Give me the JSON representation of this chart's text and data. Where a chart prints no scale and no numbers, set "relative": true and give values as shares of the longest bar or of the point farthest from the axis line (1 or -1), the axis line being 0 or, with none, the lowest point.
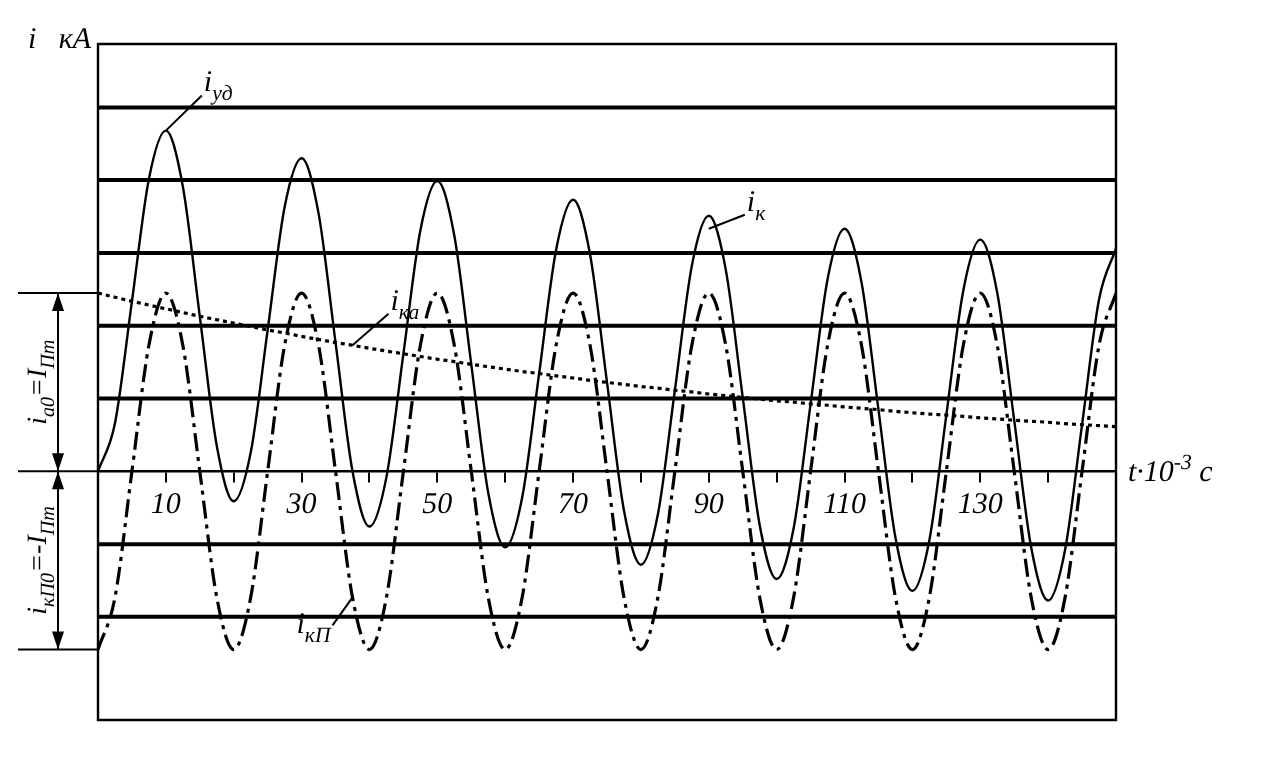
{
  "chart_data": {
    "type": "line",
    "relative": true,
    "ylabel": "i   кА",
    "xlabel": "t·10$^{-3}$ c",
    "xlim": [
      0,
      150
    ],
    "xticks": [
      {
        "value": 10,
        "label": "10"
      },
      {
        "value": 20,
        "label": null
      },
      {
        "value": 30,
        "label": "30"
      },
      {
        "value": 40,
        "label": null
      },
      {
        "value": 50,
        "label": "50"
      },
      {
        "value": 60,
        "label": null
      },
      {
        "value": 70,
        "label": "70"
      },
      {
        "value": 80,
        "label": null
      },
      {
        "value": 90,
        "label": "90"
      },
      {
        "value": 100,
        "label": null
      },
      {
        "value": 110,
        "label": "110"
      },
      {
        "value": 120,
        "label": null
      },
      {
        "value": 130,
        "label": "130"
      },
      {
        "value": 140,
        "label": null
      }
    ],
    "x": [
      0,
      2.5,
      5,
      7.5,
      10,
      12.5,
      15,
      17.5,
      20,
      22.5,
      25,
      27.5,
      30,
      32.5,
      35,
      37.5,
      40,
      42.5,
      45,
      47.5,
      50,
      52.5,
      55,
      57.5,
      60,
      62.5,
      65,
      67.5,
      70,
      72.5,
      75,
      77.5,
      80,
      82.5,
      85,
      87.5,
      90,
      92.5,
      95,
      97.5,
      100,
      102.5,
      105,
      107.5,
      110,
      112.5,
      115,
      117.5,
      120,
      122.5,
      125,
      127.5,
      130,
      132.5,
      135,
      137.5,
      140,
      142.5,
      145,
      147.5,
      150
    ],
    "series": [
      {
        "color": "#000000",
        "line_style": "solid",
        "values": [
          0,
          0.141,
          0.499,
          0.858,
          1.0,
          0.836,
          0.455,
          0.075,
          -0.088,
          0.055,
          0.415,
          0.776,
          0.919,
          0.757,
          0.378,
          0.0,
          -0.162,
          -0.017,
          0.345,
          0.707,
          0.852,
          0.692,
          0.314,
          -0.063,
          -0.223,
          -0.077,
          0.287,
          0.65,
          0.797,
          0.637,
          0.261,
          -0.115,
          -0.274,
          -0.126,
          0.238,
          0.603,
          0.75,
          0.592,
          0.217,
          -0.158,
          -0.316,
          -0.167,
          0.198,
          0.564,
          0.712,
          0.555,
          0.181,
          -0.194,
          -0.351,
          -0.202,
          0.165,
          0.531,
          0.68,
          0.524,
          0.15,
          -0.223,
          -0.379,
          -0.23,
          0.137,
          0.504,
          0.654
        ]
      },
      {
        "color": "#000000",
        "line_style": "dotted",
        "values": [
          0.523,
          0.511,
          0.499,
          0.488,
          0.477,
          0.466,
          0.455,
          0.445,
          0.435,
          0.425,
          0.415,
          0.406,
          0.396,
          0.387,
          0.378,
          0.37,
          0.361,
          0.353,
          0.345,
          0.337,
          0.329,
          0.322,
          0.314,
          0.307,
          0.3,
          0.293,
          0.287,
          0.28,
          0.274,
          0.267,
          0.261,
          0.255,
          0.249,
          0.244,
          0.238,
          0.233,
          0.227,
          0.222,
          0.217,
          0.212,
          0.207,
          0.203,
          0.198,
          0.194,
          0.189,
          0.185,
          0.181,
          0.176,
          0.172,
          0.168,
          0.165,
          0.161,
          0.157,
          0.154,
          0.15,
          0.147,
          0.144,
          0.14,
          0.137,
          0.134,
          0.131
        ]
      },
      {
        "color": "#000000",
        "line_style": "dashed",
        "values": [
          -0.523,
          -0.37,
          0,
          0.37,
          0.523,
          0.37,
          0,
          -0.37,
          -0.523,
          -0.37,
          0,
          0.37,
          0.523,
          0.37,
          0,
          -0.37,
          -0.523,
          -0.37,
          0,
          0.37,
          0.523,
          0.37,
          0,
          -0.37,
          -0.523,
          -0.37,
          0,
          0.37,
          0.523,
          0.37,
          0,
          -0.37,
          -0.523,
          -0.37,
          0,
          0.37,
          0.523,
          0.37,
          0,
          -0.37,
          -0.523,
          -0.37,
          0,
          0.37,
          0.523,
          0.37,
          0,
          -0.37,
          -0.523,
          -0.37,
          0,
          0.37,
          0.523,
          0.37,
          0,
          -0.37,
          -0.523,
          -0.37,
          0,
          0.37,
          0.523
        ]
      }
    ],
    "ref_lines": [
      {
        "axis": "y",
        "value": 1.068,
        "color": "#000000"
      },
      {
        "axis": "y",
        "value": 0.855,
        "color": "#000000"
      },
      {
        "axis": "y",
        "value": 0.641,
        "color": "#000000"
      },
      {
        "axis": "y",
        "value": 0.427,
        "color": "#000000"
      },
      {
        "axis": "y",
        "value": 0.214,
        "color": "#000000"
      },
      {
        "axis": "y",
        "value": -0.214,
        "color": "#000000"
      },
      {
        "axis": "y",
        "value": -0.427,
        "color": "#000000"
      }
    ],
    "annotations": [
      {
        "text": "i$_{уд}$",
        "x": 10,
        "y": 1.0
      },
      {
        "text": "i$_{к}$",
        "x": 90,
        "y": 0.712
      },
      {
        "text": "i$_{ка}$",
        "x": 37.5,
        "y": 0.37
      },
      {
        "text": "i$_{кП}$",
        "x": 37.5,
        "y": -0.37
      },
      "i$_{а0}$=I$_{Пm}$",
      "i$_{кП0}$=-I$_{Пm}$"
    ],
    "legend": false,
    "marker": "none"
  }
}
